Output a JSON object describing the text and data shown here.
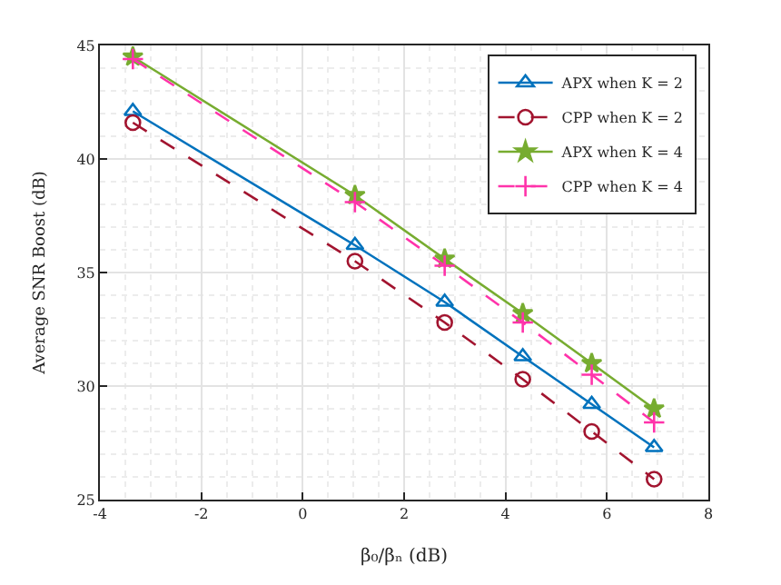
{
  "chart_data": {
    "type": "line",
    "xlabel": "β₀/βₙ (dB)",
    "ylabel": "Average SNR Boost (dB)",
    "x": [
      -3.35,
      1.03,
      2.8,
      4.34,
      5.7,
      6.93
    ],
    "series": [
      {
        "name": "APX when K = 2",
        "color": "#0072bd",
        "marker": "triangle",
        "line_style": "solid",
        "values": [
          42.1,
          36.2,
          33.7,
          31.3,
          29.2,
          27.3
        ]
      },
      {
        "name": "CPP when K = 2",
        "color": "#a2142f",
        "marker": "circle",
        "line_style": "dashed",
        "values": [
          41.6,
          35.5,
          32.8,
          30.3,
          28.0,
          25.9
        ]
      },
      {
        "name": "APX when K = 4",
        "color": "#77ac30",
        "marker": "star",
        "line_style": "solid",
        "values": [
          44.5,
          38.4,
          35.6,
          33.2,
          31.0,
          29.0
        ]
      },
      {
        "name": "CPP when K = 4",
        "color": "#ff33aa",
        "marker": "cross",
        "line_style": "dashed",
        "values": [
          44.4,
          38.1,
          35.3,
          32.8,
          30.5,
          28.4
        ]
      }
    ],
    "xlim": [
      -4,
      8
    ],
    "xticks": [
      -4,
      -2,
      0,
      2,
      4,
      6,
      8
    ],
    "ylim": [
      25,
      45
    ],
    "yticks": [
      25,
      30,
      35,
      40,
      45
    ],
    "grid": true,
    "legend": "top right"
  }
}
